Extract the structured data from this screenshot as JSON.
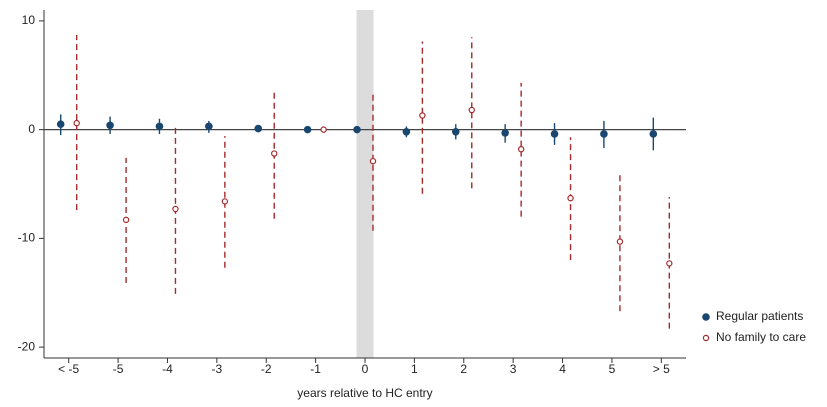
{
  "chart_data": {
    "type": "errorbar",
    "xlabel": "years relative to HC entry",
    "categories": [
      "< -5",
      "-5",
      "-4",
      "-3",
      "-2",
      "-1",
      "0",
      "1",
      "2",
      "3",
      "4",
      "5",
      "> 5"
    ],
    "shaded_category": "0",
    "zero_line": true,
    "ylim": [
      -21,
      11
    ],
    "yticks": [
      -20,
      -10,
      0,
      10
    ],
    "legend": "right",
    "series": [
      {
        "name": "Regular patients",
        "color": "#1a476f",
        "line_style": "solid",
        "marker": "filled",
        "values": [
          0.5,
          0.4,
          0.3,
          0.3,
          0.1,
          0,
          0,
          -0.2,
          -0.2,
          -0.3,
          -0.4,
          -0.4,
          -0.4
        ],
        "lower": [
          -0.5,
          -0.4,
          -0.4,
          -0.3,
          -0.1,
          null,
          null,
          -0.7,
          -0.9,
          -1.2,
          -1.4,
          -1.7,
          -1.9
        ],
        "upper": [
          1.4,
          1.2,
          1.0,
          0.8,
          0.3,
          null,
          null,
          0.3,
          0.5,
          0.5,
          0.6,
          0.8,
          1.1
        ]
      },
      {
        "name": "No family to care",
        "color": "#a52a2a",
        "line_style": "dashed",
        "marker": "hollow",
        "values": [
          0.6,
          -8.3,
          -7.3,
          -6.6,
          -2.2,
          0,
          -2.9,
          1.3,
          1.8,
          -1.8,
          -6.3,
          -10.3,
          -12.3
        ],
        "lower": [
          -7.4,
          -14.1,
          -15.1,
          -12.7,
          -8.2,
          null,
          -9.3,
          -5.9,
          -5.4,
          -8.0,
          -12.0,
          -16.7,
          -18.3
        ],
        "upper": [
          8.7,
          -2.6,
          0.5,
          -0.6,
          3.5,
          null,
          3.4,
          8.1,
          8.5,
          4.3,
          -0.7,
          -4.1,
          -6.2
        ]
      }
    ]
  }
}
